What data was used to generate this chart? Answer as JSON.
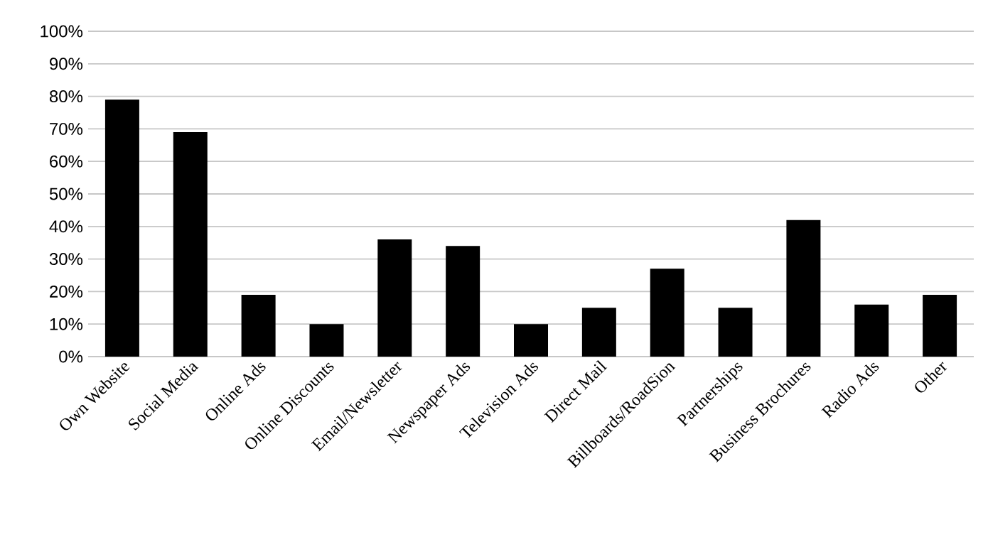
{
  "chart_data": {
    "type": "bar",
    "categories": [
      "Own Website",
      "Social Media",
      "Online Ads",
      "Online Discounts",
      "Email/Newsletter",
      "Newspaper Ads",
      "Television Ads",
      "Direct Mail",
      "Billboards/RoadSion",
      "Partnerships",
      "Business Brochures",
      "Radio Ads",
      "Other"
    ],
    "values": [
      79,
      69,
      19,
      10,
      36,
      34,
      10,
      15,
      27,
      15,
      42,
      16,
      19
    ],
    "color": "#000000",
    "ylim": [
      0,
      100
    ],
    "yticks": [
      {
        "value": 0,
        "label": "0%"
      },
      {
        "value": 10,
        "label": "10%"
      },
      {
        "value": 20,
        "label": "20%"
      },
      {
        "value": 30,
        "label": "30%"
      },
      {
        "value": 40,
        "label": "40%"
      },
      {
        "value": 50,
        "label": "50%"
      },
      {
        "value": 60,
        "label": "60%"
      },
      {
        "value": 70,
        "label": "70%"
      },
      {
        "value": 80,
        "label": "80%"
      },
      {
        "value": 90,
        "label": "90%"
      },
      {
        "value": 100,
        "label": "100%"
      }
    ],
    "grid": "y"
  }
}
